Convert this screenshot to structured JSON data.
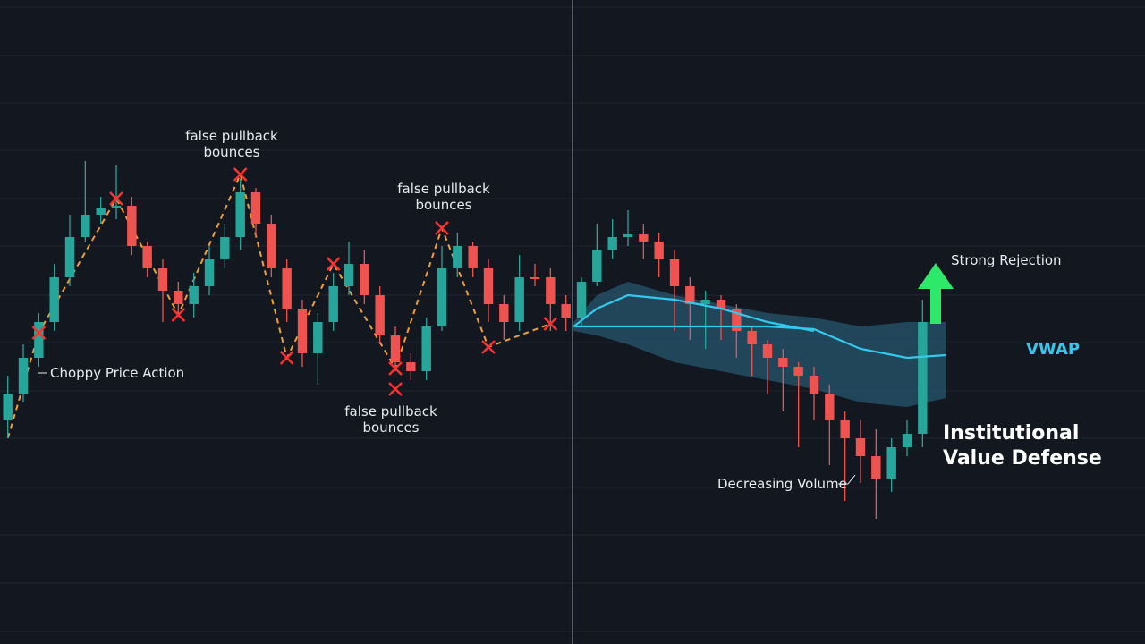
{
  "chart_data": {
    "type": "candlestick",
    "categories": [
      null,
      null,
      null,
      null,
      null,
      null,
      null,
      null,
      null,
      null,
      null,
      null,
      null,
      null,
      null,
      null,
      null,
      null,
      null,
      null,
      null,
      null,
      null,
      null,
      null,
      null,
      null,
      null,
      null,
      null,
      null,
      null,
      null,
      null,
      null,
      null,
      null,
      null,
      null,
      null,
      null,
      null,
      null,
      null,
      null,
      null,
      null,
      null,
      null,
      null,
      null,
      null,
      null,
      null,
      null,
      null,
      null,
      null,
      null,
      null
    ],
    "open": [
      25,
      28,
      32,
      36,
      41,
      45.5,
      48,
      48.8,
      49,
      44.5,
      42,
      39.5,
      38,
      40,
      43,
      45.5,
      50.5,
      47,
      42,
      37.5,
      32.5,
      36,
      40,
      42.5,
      39,
      34.5,
      31.5,
      30.5,
      35.5,
      42,
      44.5,
      42,
      38,
      36,
      41,
      41,
      38,
      36.5,
      40.5,
      44,
      45.5,
      45.8,
      45,
      43,
      40,
      38,
      38.5,
      37.5,
      35,
      33.5,
      32,
      31,
      30,
      28,
      25,
      23,
      21,
      18.5,
      22,
      23.5
    ],
    "high": [
      30,
      33.5,
      37,
      42.5,
      48,
      54,
      50,
      53.5,
      50,
      45,
      43,
      40.5,
      41.5,
      44.5,
      47,
      52,
      51,
      48,
      43,
      38.5,
      37,
      41.5,
      45,
      44,
      40,
      35.5,
      32.5,
      36.5,
      44.5,
      46,
      45,
      43,
      39,
      43.5,
      42.5,
      42,
      39,
      41,
      47,
      47.5,
      48.5,
      47,
      46,
      44,
      41,
      39.5,
      39,
      38,
      35.5,
      34,
      33,
      31.5,
      31,
      29,
      26,
      25,
      24,
      23,
      25,
      38.5
    ],
    "low": [
      23,
      27,
      31,
      35,
      40,
      45,
      47,
      47.5,
      43.5,
      41,
      36,
      37,
      36.5,
      39,
      42,
      44,
      45.5,
      41,
      36,
      31,
      29,
      35,
      39,
      38,
      33.5,
      30.5,
      29.5,
      29.5,
      35,
      41,
      41,
      36,
      34,
      35,
      40,
      35,
      35,
      35.5,
      40,
      43,
      44.5,
      43,
      41,
      35,
      34,
      33,
      34,
      32,
      30,
      28,
      26,
      22,
      25,
      20,
      16,
      18,
      14,
      17,
      21,
      22
    ],
    "close": [
      28,
      32,
      36,
      41,
      45.5,
      48,
      48.8,
      49,
      44.5,
      42,
      39.5,
      38,
      40,
      43,
      45.5,
      50.5,
      47,
      42,
      37.5,
      32.5,
      36,
      40,
      42.5,
      39,
      34.5,
      31.5,
      30.5,
      35.5,
      42,
      44.5,
      42,
      38,
      36,
      41,
      41,
      38,
      36.5,
      40.5,
      44,
      45.5,
      45.8,
      45,
      43,
      40,
      38,
      38.5,
      37.5,
      35,
      33.5,
      32,
      31,
      30,
      28,
      25,
      23,
      21,
      18.5,
      22,
      23.5,
      36
    ],
    "up_color": "#26a69a",
    "down_color": "#ef5350",
    "ylim": [
      0,
      72
    ],
    "zigzag": {
      "color": "#f0a030",
      "x": [
        0,
        2,
        7,
        11,
        15,
        18,
        21,
        25,
        28,
        31,
        35
      ],
      "values": [
        23,
        34.8,
        49.8,
        36.8,
        52.5,
        32,
        42.5,
        30.8,
        46.5,
        33.2,
        35.8
      ]
    },
    "markers": {
      "color": "#ff3030",
      "x": [
        2,
        7,
        11,
        15,
        18,
        21,
        25,
        25,
        28,
        31,
        35
      ],
      "values": [
        34.8,
        49.8,
        36.8,
        52.5,
        32,
        42.5,
        30.8,
        28.5,
        46.5,
        33.2,
        35.8
      ]
    },
    "band": {
      "color": "#2e6e8a",
      "x": [
        36.5,
        38,
        40,
        43,
        46,
        49,
        52,
        55,
        58,
        60.5
      ],
      "upper": [
        36,
        39,
        40.5,
        39,
        38,
        37,
        36.5,
        35.5,
        36,
        36
      ],
      "lower": [
        35,
        34.5,
        33.5,
        31.5,
        30.5,
        29.5,
        28.5,
        27,
        26.5,
        27.5
      ]
    },
    "lines": [
      {
        "name": "VWAP",
        "color": "#33c8ee",
        "x": [
          36.5,
          38,
          40,
          43,
          46,
          49,
          52,
          55,
          58,
          60.5
        ],
        "values": [
          35.5,
          35.5,
          35.5,
          35.5,
          35.5,
          35.5,
          35.2,
          33,
          32,
          32.3
        ]
      },
      {
        "color": "#33c8ee",
        "x": [
          36.5,
          38,
          40,
          43,
          46,
          49,
          52
        ],
        "values": [
          35.5,
          37.5,
          39,
          38.5,
          37.5,
          36,
          35
        ]
      }
    ],
    "annotations": {
      "bounce_1": [
        "false pullback",
        "bounces"
      ],
      "bounce_2": [
        "false pullback",
        "bounces"
      ],
      "bounce_3": [
        "false pullback",
        "bounces"
      ],
      "choppy": "Choppy Price Action",
      "volume": "Decreasing Volume",
      "rejection": "Strong Rejection",
      "defense": [
        "Institutional",
        "Value Defense"
      ]
    }
  }
}
